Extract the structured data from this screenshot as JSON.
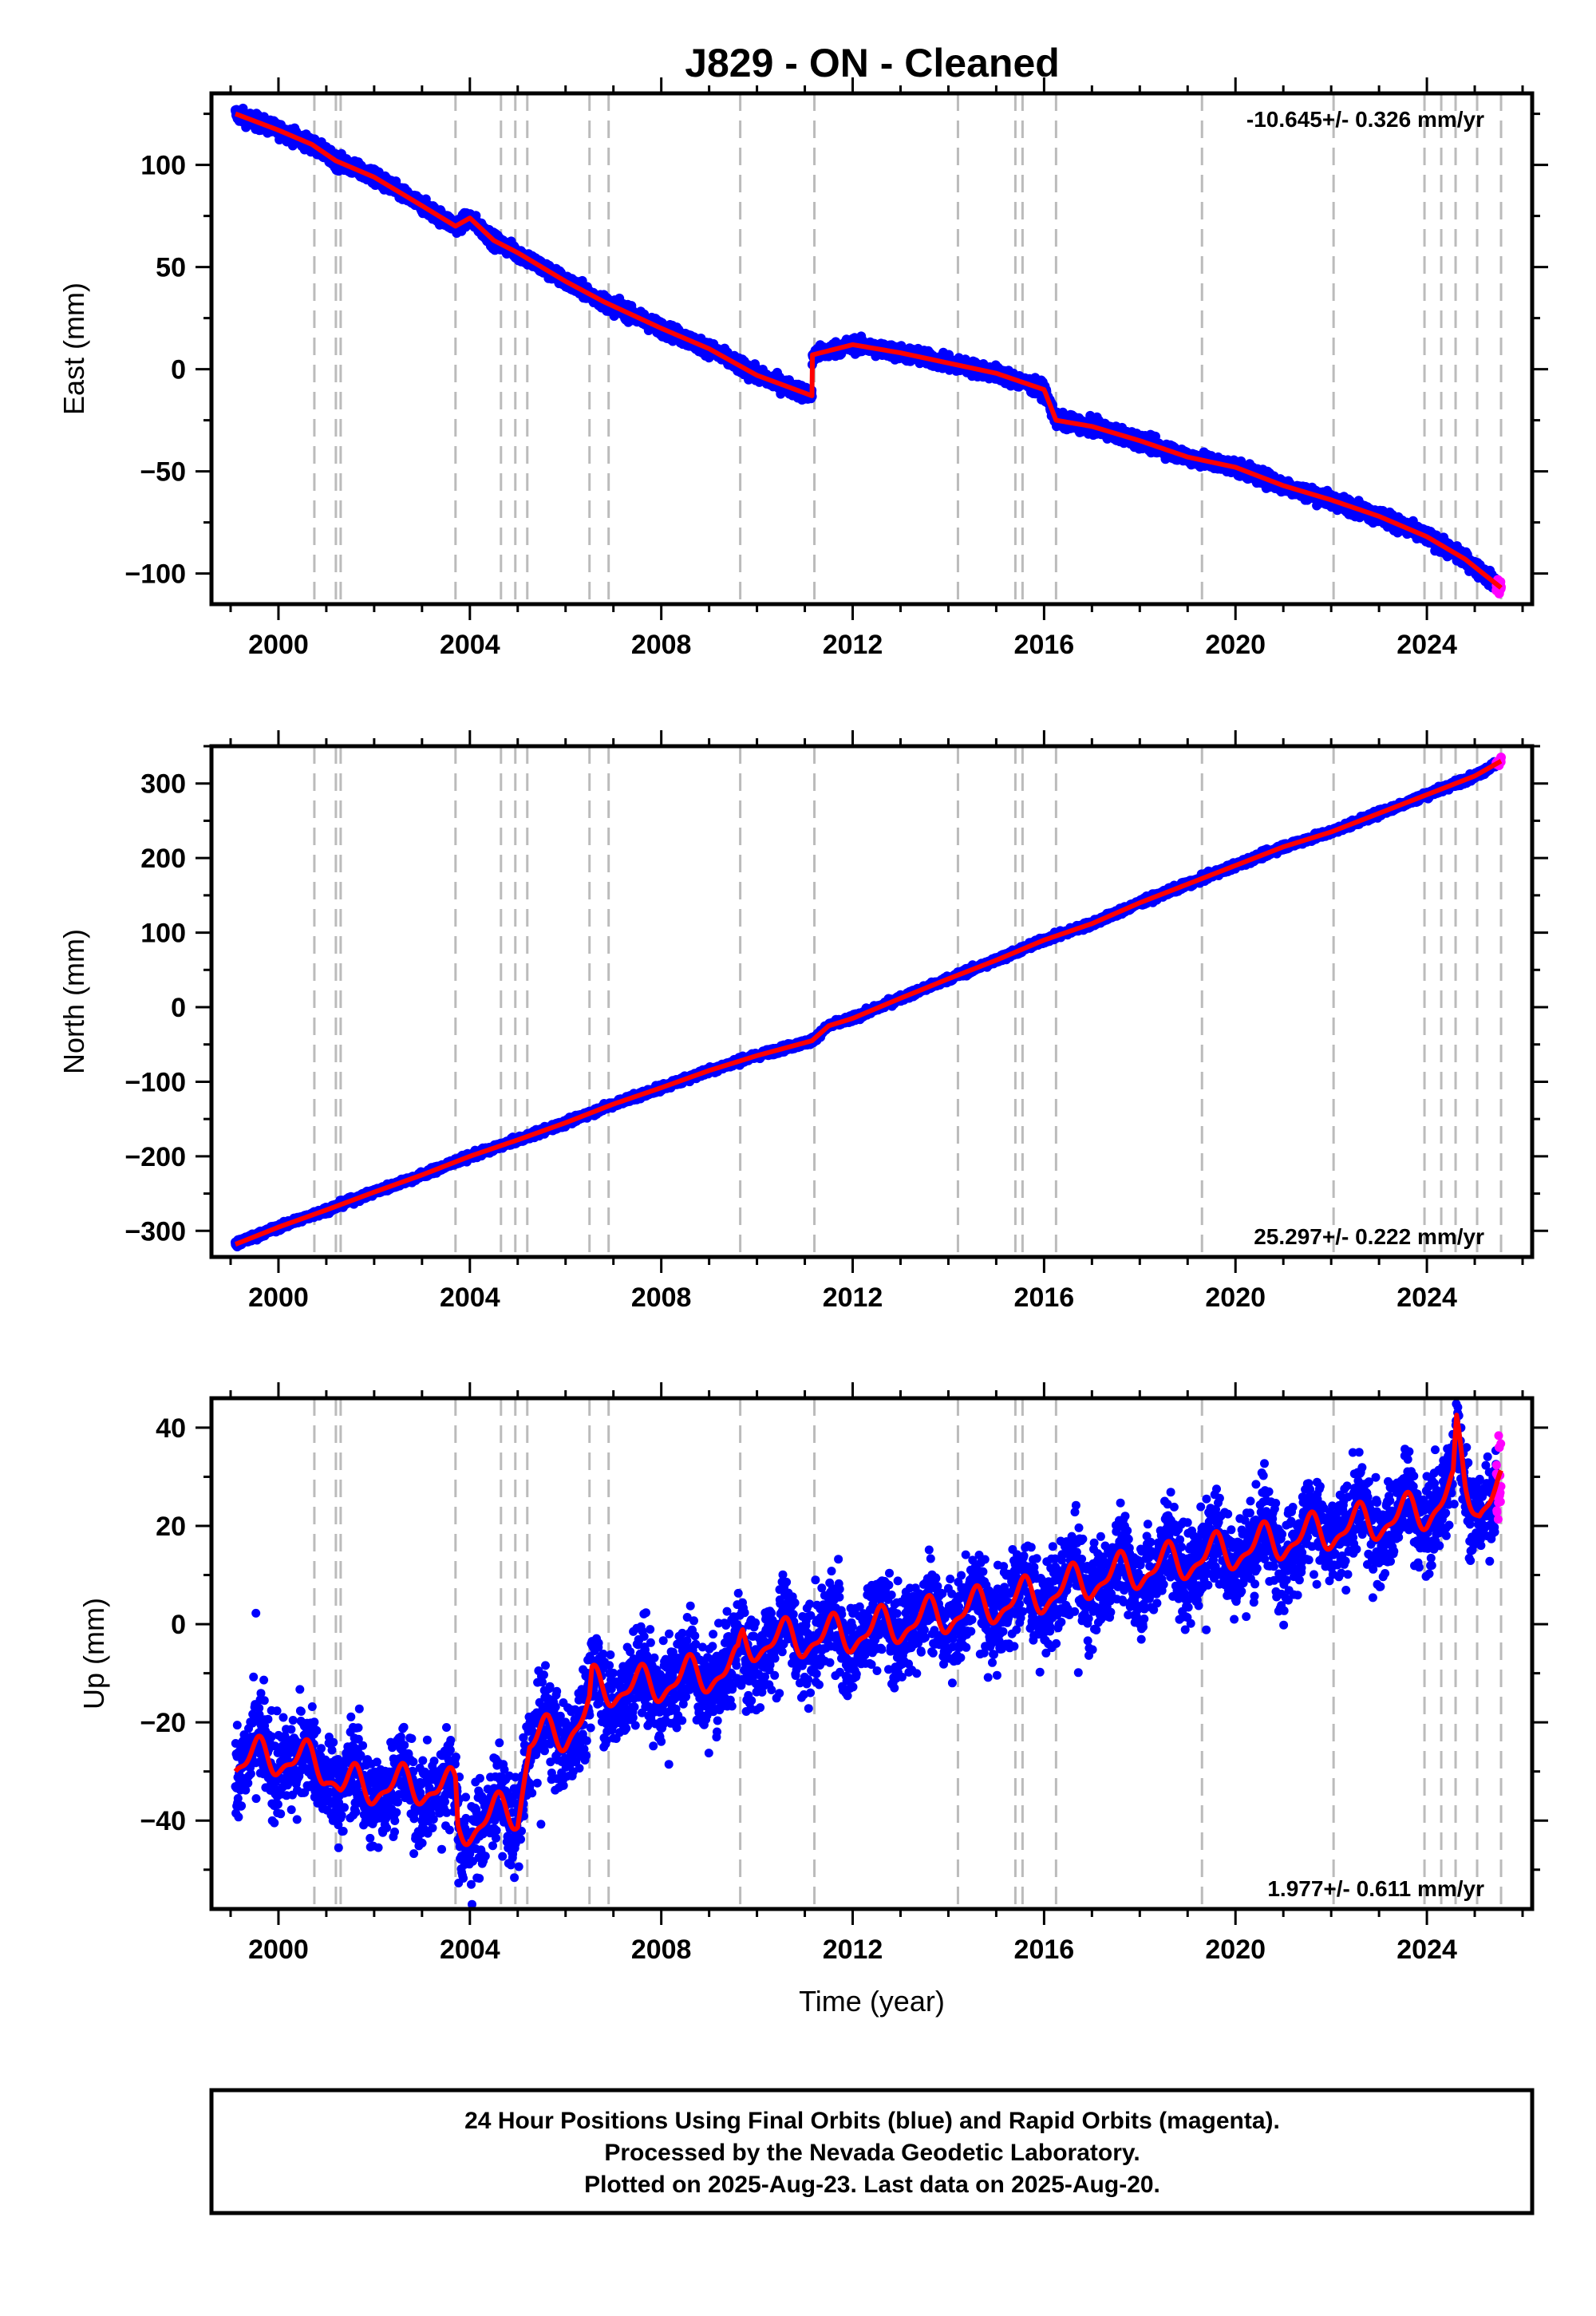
{
  "figure_title": "J829  - ON - Cleaned",
  "colors": {
    "final_orbits": "#0000ff",
    "rapid_orbits": "#ff00ff",
    "model": "#ff0000",
    "event_lines": "#bbbbbb",
    "frame": "#000000"
  },
  "note": {
    "lines": [
      "24 Hour Positions Using Final Orbits (blue) and Rapid Orbits (magenta).",
      "Processed by the Nevada Geodetic Laboratory.",
      "Plotted on 2025-Aug-23. Last data on 2025-Aug-20."
    ]
  },
  "chart_data": [
    {
      "type": "scatter",
      "component": "East",
      "ylabel": "East (mm)",
      "xlabel": "",
      "xlim": [
        1998.6,
        2026.2
      ],
      "ylim": [
        -115,
        135
      ],
      "xticks": [
        2000,
        2004,
        2008,
        2012,
        2016,
        2020,
        2024
      ],
      "yticks": [
        -100,
        -50,
        0,
        50,
        100
      ],
      "rate_label": "-10.645+/- 0.326 mm/yr",
      "rate_position": "top-right",
      "data_start": 1999.1,
      "data_end": 2025.55,
      "rapid_start": 2025.45,
      "scatter": 2.5,
      "model_knots": [
        [
          1999.1,
          125
        ],
        [
          2000.0,
          117
        ],
        [
          2000.7,
          110
        ],
        [
          2001.2,
          102
        ],
        [
          2002.0,
          94
        ],
        [
          2003.0,
          80
        ],
        [
          2003.7,
          70
        ],
        [
          2004.0,
          74
        ],
        [
          2004.5,
          63
        ],
        [
          2005.0,
          57
        ],
        [
          2006.0,
          43
        ],
        [
          2006.8,
          33
        ],
        [
          2008.0,
          20
        ],
        [
          2009.0,
          10
        ],
        [
          2010.0,
          -3
        ],
        [
          2011.15,
          -13
        ],
        [
          2011.16,
          7
        ],
        [
          2012.0,
          12
        ],
        [
          2013.0,
          8
        ],
        [
          2014.0,
          3
        ],
        [
          2015.0,
          -2
        ],
        [
          2016.0,
          -10
        ],
        [
          2016.25,
          -25
        ],
        [
          2017.0,
          -28
        ],
        [
          2018.0,
          -35
        ],
        [
          2019.0,
          -43
        ],
        [
          2020.0,
          -48
        ],
        [
          2021.0,
          -57
        ],
        [
          2022.0,
          -64
        ],
        [
          2023.0,
          -72
        ],
        [
          2024.0,
          -82
        ],
        [
          2024.8,
          -93
        ],
        [
          2025.55,
          -107
        ]
      ],
      "event_years": [
        2000.75,
        2001.2,
        2001.3,
        2003.7,
        2004.65,
        2004.95,
        2005.2,
        2006.5,
        2006.9,
        2009.65,
        2011.2,
        2014.2,
        2015.4,
        2015.55,
        2016.25,
        2019.3,
        2022.05,
        2023.95,
        2024.3,
        2024.6,
        2025.05,
        2025.55
      ]
    },
    {
      "type": "scatter",
      "component": "North",
      "ylabel": "North (mm)",
      "xlabel": "",
      "xlim": [
        1998.6,
        2026.2
      ],
      "ylim": [
        -335,
        350
      ],
      "xticks": [
        2000,
        2004,
        2008,
        2012,
        2016,
        2020,
        2024
      ],
      "yticks": [
        -300,
        -200,
        -100,
        0,
        100,
        200,
        300
      ],
      "rate_label": "25.297+/- 0.222 mm/yr",
      "rate_position": "bottom-right",
      "data_start": 1999.1,
      "data_end": 2025.55,
      "rapid_start": 2025.45,
      "scatter": 3,
      "model_knots": [
        [
          1999.1,
          -318
        ],
        [
          2000.0,
          -295
        ],
        [
          2001.0,
          -272
        ],
        [
          2002.0,
          -248
        ],
        [
          2003.0,
          -225
        ],
        [
          2004.0,
          -200
        ],
        [
          2005.0,
          -178
        ],
        [
          2006.0,
          -155
        ],
        [
          2007.0,
          -130
        ],
        [
          2008.0,
          -108
        ],
        [
          2009.0,
          -85
        ],
        [
          2010.0,
          -65
        ],
        [
          2011.15,
          -45
        ],
        [
          2011.5,
          -25
        ],
        [
          2012.0,
          -15
        ],
        [
          2013.0,
          12
        ],
        [
          2014.0,
          38
        ],
        [
          2015.0,
          63
        ],
        [
          2016.0,
          90
        ],
        [
          2017.0,
          112
        ],
        [
          2018.0,
          140
        ],
        [
          2019.0,
          165
        ],
        [
          2020.0,
          190
        ],
        [
          2021.0,
          215
        ],
        [
          2022.0,
          235
        ],
        [
          2023.0,
          260
        ],
        [
          2024.0,
          285
        ],
        [
          2025.0,
          310
        ],
        [
          2025.55,
          330
        ]
      ],
      "event_years": [
        2000.75,
        2001.2,
        2001.3,
        2003.7,
        2004.65,
        2004.95,
        2005.2,
        2006.5,
        2006.9,
        2009.65,
        2011.2,
        2014.2,
        2015.4,
        2015.55,
        2016.25,
        2019.3,
        2022.05,
        2023.95,
        2024.3,
        2024.6,
        2025.05,
        2025.55
      ]
    },
    {
      "type": "scatter",
      "component": "Up",
      "ylabel": "Up (mm)",
      "xlabel": "Time (year)",
      "xlim": [
        1998.6,
        2026.2
      ],
      "ylim": [
        -58,
        46
      ],
      "xticks": [
        2000,
        2004,
        2008,
        2012,
        2016,
        2020,
        2024
      ],
      "yticks": [
        -40,
        -20,
        0,
        20,
        40
      ],
      "rate_label": "1.977+/- 0.611 mm/yr",
      "rate_position": "bottom-right",
      "data_start": 1999.1,
      "data_end": 2025.55,
      "rapid_start": 2025.45,
      "scatter": 6.5,
      "seasonal_amplitude": 3.5,
      "model_knots": [
        [
          1999.1,
          -28
        ],
        [
          2000.0,
          -27
        ],
        [
          2001.0,
          -29
        ],
        [
          2001.3,
          -33
        ],
        [
          2002.0,
          -33
        ],
        [
          2003.0,
          -33
        ],
        [
          2003.7,
          -34
        ],
        [
          2003.75,
          -42
        ],
        [
          2004.5,
          -39
        ],
        [
          2005.0,
          -38
        ],
        [
          2005.25,
          -24
        ],
        [
          2006.0,
          -22
        ],
        [
          2006.5,
          -18
        ],
        [
          2006.55,
          -13
        ],
        [
          2007.5,
          -13
        ],
        [
          2008.5,
          -11
        ],
        [
          2009.6,
          -9
        ],
        [
          2009.7,
          -4
        ],
        [
          2011.0,
          -3
        ],
        [
          2012.0,
          -2
        ],
        [
          2013.0,
          0
        ],
        [
          2014.0,
          2
        ],
        [
          2015.0,
          4
        ],
        [
          2016.0,
          6
        ],
        [
          2017.0,
          9
        ],
        [
          2018.0,
          11
        ],
        [
          2019.0,
          13
        ],
        [
          2020.0,
          15
        ],
        [
          2021.0,
          17
        ],
        [
          2022.0,
          19
        ],
        [
          2023.0,
          21
        ],
        [
          2024.0,
          23
        ],
        [
          2024.55,
          27
        ],
        [
          2024.62,
          38
        ],
        [
          2024.8,
          29
        ],
        [
          2025.1,
          24
        ],
        [
          2025.55,
          27
        ]
      ],
      "event_years": [
        2000.75,
        2001.2,
        2001.3,
        2003.7,
        2004.65,
        2004.95,
        2005.2,
        2006.5,
        2006.9,
        2009.65,
        2011.2,
        2014.2,
        2015.4,
        2015.55,
        2016.25,
        2019.3,
        2022.05,
        2023.95,
        2024.3,
        2024.6,
        2025.05,
        2025.55
      ]
    }
  ]
}
